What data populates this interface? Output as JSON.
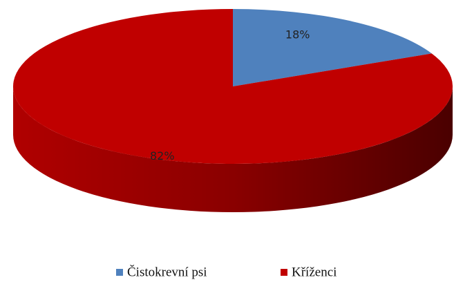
{
  "chart_data": {
    "type": "pie",
    "categories": [
      "Čistokrevní psi",
      "Kříženci"
    ],
    "values": [
      18,
      82
    ],
    "value_labels": [
      "18%",
      "82%"
    ],
    "colors": [
      "#4f81bd",
      "#c00000"
    ],
    "legend": "bottom"
  }
}
